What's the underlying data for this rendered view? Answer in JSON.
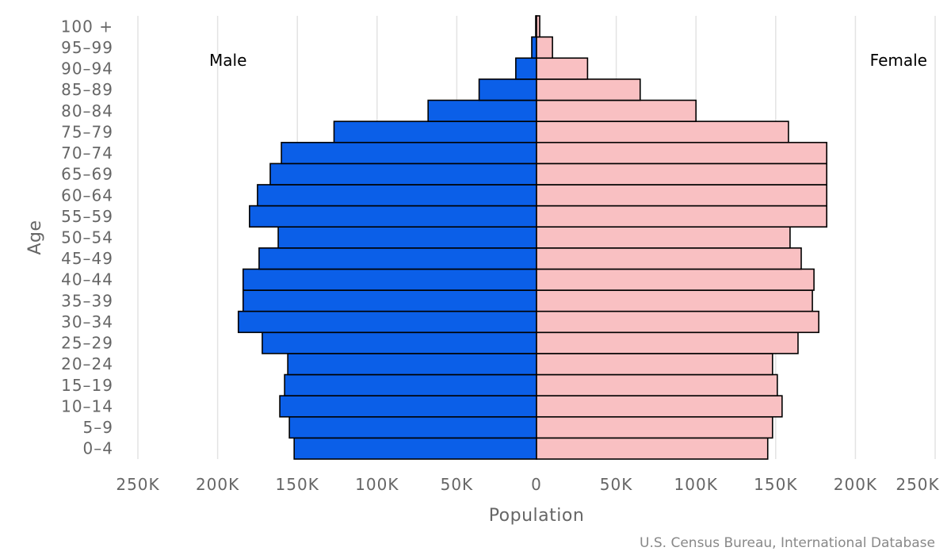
{
  "chart_data": {
    "type": "bar",
    "orientation": "horizontal",
    "title": "",
    "xlabel": "Population",
    "ylabel": "Age",
    "xlim": [
      -250000,
      250000
    ],
    "x_ticks": [
      -250000,
      -200000,
      -150000,
      -100000,
      -50000,
      0,
      50000,
      100000,
      150000,
      200000,
      250000
    ],
    "x_tick_labels": [
      "250K",
      "200K",
      "150K",
      "100K",
      "50K",
      "0",
      "50K",
      "100K",
      "150K",
      "200K",
      "250K"
    ],
    "grid": true,
    "categories": [
      "0-4",
      "5-9",
      "10-14",
      "15-19",
      "20-24",
      "25-29",
      "30-34",
      "35-39",
      "40-44",
      "45-49",
      "50-54",
      "55-59",
      "60-64",
      "65-69",
      "70-74",
      "75-79",
      "80-84",
      "85-89",
      "90-94",
      "95-99",
      "100 +"
    ],
    "series": [
      {
        "name": "Male",
        "color": "#0b5fe8",
        "values": [
          152000,
          155000,
          161000,
          158000,
          156000,
          172000,
          187000,
          184000,
          184000,
          174000,
          162000,
          180000,
          175000,
          167000,
          160000,
          127000,
          68000,
          36000,
          13000,
          3000,
          500
        ]
      },
      {
        "name": "Female",
        "color": "#f9c0c2",
        "values": [
          145000,
          148000,
          154000,
          151000,
          148000,
          164000,
          177000,
          173000,
          174000,
          166000,
          159000,
          182000,
          182000,
          182000,
          182000,
          158000,
          100000,
          65000,
          32000,
          10000,
          2000
        ]
      }
    ],
    "legend": {
      "male_label": "Male",
      "female_label": "Female",
      "placement": "top-left and top-right"
    },
    "source": "U.S. Census Bureau, International Database"
  }
}
